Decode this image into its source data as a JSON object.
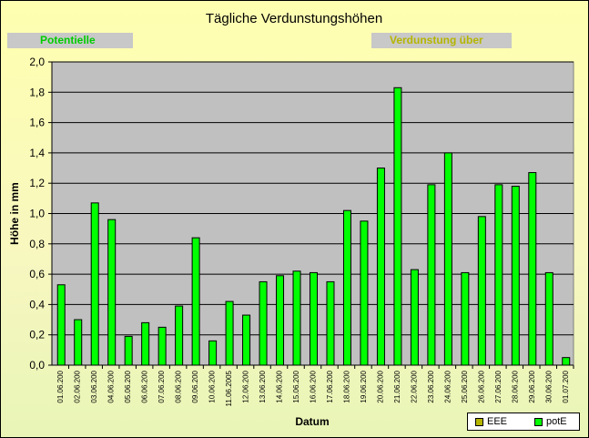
{
  "chart_data": {
    "type": "bar",
    "title": "Tägliche Verdunstungshöhen",
    "xlabel": "Datum",
    "ylabel": "Höhe in mm",
    "ylim": [
      0,
      2.0
    ],
    "yticks": [
      "0,0",
      "0,2",
      "0,4",
      "0,6",
      "0,8",
      "1,0",
      "1,2",
      "1,4",
      "1,6",
      "1,8",
      "2,0"
    ],
    "grid": true,
    "legend_position": "bottom-right",
    "categories": [
      "01.06.200",
      "02.06.200",
      "03.06.200",
      "04.06.200",
      "05.06.200",
      "06.06.200",
      "07.06.200",
      "08.06.200",
      "09.06.200",
      "10.06.200",
      "11.06.2005",
      "12.06.200",
      "13.06.200",
      "14.06.200",
      "15.06.200",
      "16.06.200",
      "17.06.200",
      "18.06.200",
      "19.06.200",
      "20.06.200",
      "21.06.200",
      "22.06.200",
      "23.06.200",
      "24.06.200",
      "25.06.200",
      "26.06.200",
      "27.06.200",
      "28.06.200",
      "29.06.200",
      "30.06.200",
      "01.07.200"
    ],
    "series": [
      {
        "name": "EEE",
        "color": "#b5b500",
        "values": [
          0,
          0,
          0,
          0,
          0,
          0,
          0,
          0,
          0,
          0,
          0,
          0,
          0,
          0,
          0,
          0,
          0,
          0,
          0,
          0,
          0,
          0,
          0,
          0,
          0,
          0,
          0,
          0,
          0,
          0,
          0
        ]
      },
      {
        "name": "potE",
        "color": "#00ff00",
        "values": [
          0.53,
          0.3,
          1.07,
          0.96,
          0.19,
          0.28,
          0.25,
          0.39,
          0.84,
          0.16,
          0.42,
          0.33,
          0.55,
          0.59,
          0.62,
          0.61,
          0.55,
          1.02,
          0.95,
          1.3,
          1.83,
          0.63,
          1.19,
          1.4,
          0.61,
          0.98,
          1.19,
          1.18,
          1.27,
          0.61,
          0.05
        ]
      }
    ],
    "plot_background": "#c0c0c0"
  },
  "overlay": {
    "left_label": "Potentielle",
    "right_label": "Verdunstung über"
  }
}
